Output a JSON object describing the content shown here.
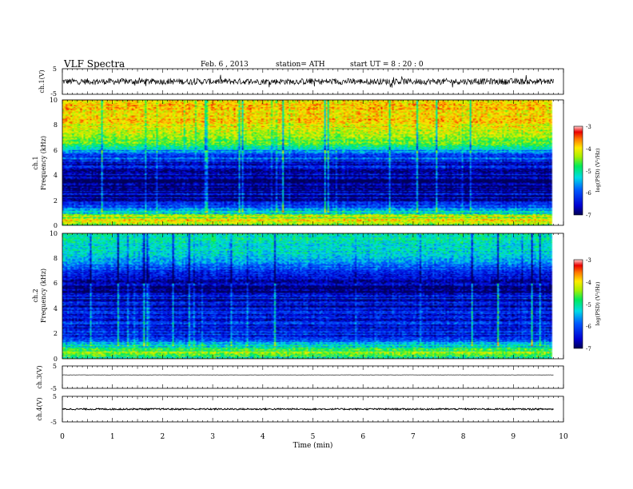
{
  "header": {
    "title": "VLF  Spectra",
    "date": "Feb. 6  , 2013",
    "station": "station= ATH",
    "start": "start  UT  =   8  : 20 : 0"
  },
  "chart_data": [
    {
      "type": "line",
      "name": "ch.1 waveform",
      "ylabel": "ch.1(V)",
      "ylim": [
        -5,
        5
      ],
      "yticks": [
        "5",
        "-5"
      ],
      "xlim": [
        0,
        10
      ],
      "x_extent": [
        0,
        9.8
      ],
      "baseline": 0,
      "noise_amplitude": 1.2
    },
    {
      "type": "heatmap",
      "name": "ch.1 spectrogram",
      "ylabel_1": "ch.1",
      "ylabel_2": "Frequency  (kHz)",
      "ylim": [
        0,
        10
      ],
      "yticks": [
        "0",
        "2",
        "4",
        "6",
        "8",
        "10"
      ],
      "xlim": [
        0,
        10
      ],
      "x_extent": [
        0,
        9.8
      ],
      "colorbar": {
        "label": "log(PSD) (V²/Hz)",
        "range": [
          -7,
          -3
        ],
        "ticks": [
          "-7",
          "-6",
          "-5",
          "-4",
          "-3"
        ]
      },
      "profile_log_psd": [
        {
          "f": 0.0,
          "v": -5.0
        },
        {
          "f": 0.5,
          "v": -3.8
        },
        {
          "f": 1.0,
          "v": -5.3
        },
        {
          "f": 2.0,
          "v": -6.6
        },
        {
          "f": 3.0,
          "v": -6.9
        },
        {
          "f": 4.0,
          "v": -6.8
        },
        {
          "f": 5.0,
          "v": -6.5
        },
        {
          "f": 5.8,
          "v": -5.7
        },
        {
          "f": 6.5,
          "v": -4.6
        },
        {
          "f": 8.0,
          "v": -4.0
        },
        {
          "f": 10.0,
          "v": -3.9
        }
      ]
    },
    {
      "type": "heatmap",
      "name": "ch.2 spectrogram",
      "ylabel_1": "ch.2",
      "ylabel_2": "Frequency  (kHz)",
      "ylim": [
        0,
        10
      ],
      "yticks": [
        "0",
        "2",
        "4",
        "6",
        "8",
        "10"
      ],
      "xlim": [
        0,
        10
      ],
      "x_extent": [
        0,
        9.8
      ],
      "colorbar": {
        "label": "log(PSD) (V²/Hz)",
        "range": [
          -7,
          -3
        ],
        "ticks": [
          "-7",
          "-6",
          "-5",
          "-4",
          "-3"
        ]
      },
      "profile_log_psd": [
        {
          "f": 0.0,
          "v": -5.2
        },
        {
          "f": 0.5,
          "v": -4.2
        },
        {
          "f": 1.0,
          "v": -5.4
        },
        {
          "f": 2.0,
          "v": -6.3
        },
        {
          "f": 3.0,
          "v": -6.4
        },
        {
          "f": 4.0,
          "v": -6.6
        },
        {
          "f": 5.0,
          "v": -6.6
        },
        {
          "f": 6.0,
          "v": -6.8
        },
        {
          "f": 7.0,
          "v": -6.2
        },
        {
          "f": 8.0,
          "v": -5.4
        },
        {
          "f": 10.0,
          "v": -5.1
        }
      ]
    },
    {
      "type": "line",
      "name": "ch.3 waveform",
      "ylabel": "ch.3(V)",
      "ylim": [
        -5,
        5
      ],
      "yticks": [
        "5",
        "-5"
      ],
      "xlim": [
        0,
        10
      ],
      "x_extent": [
        0,
        9.8
      ],
      "baseline": 1,
      "noise_amplitude": 0.05
    },
    {
      "type": "line",
      "name": "ch.4 waveform",
      "ylabel": "ch.4(V)",
      "ylim": [
        -5,
        5
      ],
      "yticks": [
        "5",
        "-5"
      ],
      "xlim": [
        0,
        10
      ],
      "x_extent": [
        0,
        9.8
      ],
      "baseline": 0,
      "noise_amplitude": 0.3
    }
  ],
  "xaxis": {
    "label": "Time  (min)",
    "range": [
      0,
      10
    ],
    "ticks": [
      "0",
      "1",
      "2",
      "3",
      "4",
      "5",
      "6",
      "7",
      "8",
      "9",
      "10"
    ]
  }
}
